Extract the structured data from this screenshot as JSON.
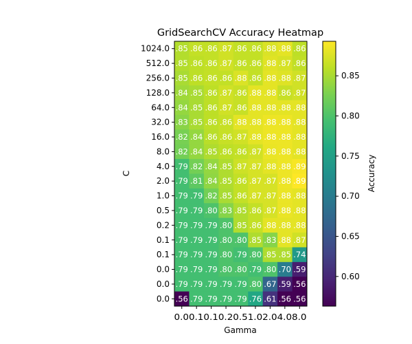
{
  "chart_data": {
    "type": "heatmap",
    "title": "GridSearchCV Accuracy Heatmap",
    "xlabel": "Gamma",
    "ylabel": "C",
    "colorbar_label": "Accuracy",
    "colormap": "viridis",
    "color_range": [
      0.563,
      0.893
    ],
    "colorbar_ticks": [
      "0.60",
      "0.65",
      "0.70",
      "0.75",
      "0.80",
      "0.85"
    ],
    "x_tick_labels": [
      "0.0",
      "0.1",
      "0.1",
      "0.2",
      "0.5",
      "1.0",
      "2.0",
      "4.0",
      "8.0"
    ],
    "x_tick_label_combined": "0.00.10.10.20.51.02.04.08.0",
    "x_values": [
      0.03125,
      0.0625,
      0.125,
      0.25,
      0.5,
      1.0,
      2.0,
      4.0,
      8.0
    ],
    "y_tick_labels": [
      "1024.0",
      "512.0",
      "256.0",
      "128.0",
      "64.0",
      "32.0",
      "16.0",
      "8.0",
      "4.0",
      "2.0",
      "1.0",
      "0.5",
      "0.2",
      "0.1",
      "0.1",
      "0.0",
      "0.0",
      "0.0"
    ],
    "cell_labels": [
      [
        ".85",
        ".86",
        ".86",
        ".87",
        ".86",
        ".86",
        ".88",
        ".88",
        ".86"
      ],
      [
        ".85",
        ".86",
        ".86",
        ".87",
        ".86",
        ".86",
        ".88",
        ".87",
        ".86"
      ],
      [
        ".85",
        ".86",
        ".86",
        ".86",
        ".88",
        ".86",
        ".88",
        ".88",
        ".87"
      ],
      [
        ".84",
        ".85",
        ".86",
        ".87",
        ".86",
        ".88",
        ".88",
        ".86",
        ".87"
      ],
      [
        ".84",
        ".85",
        ".86",
        ".87",
        ".86",
        ".88",
        ".88",
        ".88",
        ".88"
      ],
      [
        ".83",
        ".85",
        ".86",
        ".86",
        ".88",
        ".88",
        ".88",
        ".88",
        ".88"
      ],
      [
        ".82",
        ".84",
        ".86",
        ".86",
        ".87",
        ".88",
        ".88",
        ".88",
        ".88"
      ],
      [
        ".82",
        ".84",
        ".85",
        ".86",
        ".86",
        ".87",
        ".88",
        ".88",
        ".88"
      ],
      [
        ".79",
        ".82",
        ".84",
        ".85",
        ".87",
        ".87",
        ".88",
        ".88",
        ".89"
      ],
      [
        ".79",
        ".81",
        ".84",
        ".85",
        ".86",
        ".87",
        ".87",
        ".88",
        ".89"
      ],
      [
        ".79",
        ".79",
        ".82",
        ".85",
        ".86",
        ".87",
        ".87",
        ".88",
        ".88"
      ],
      [
        ".79",
        ".79",
        ".80",
        ".83",
        ".85",
        ".86",
        ".87",
        ".88",
        ".88"
      ],
      [
        ".79",
        ".79",
        ".79",
        ".80",
        ".85",
        ".86",
        ".88",
        ".88",
        ".88"
      ],
      [
        ".79",
        ".79",
        ".79",
        ".80",
        ".80",
        ".85",
        ".83",
        ".88",
        ".87"
      ],
      [
        ".79",
        ".79",
        ".79",
        ".80",
        ".79",
        ".80",
        ".85",
        ".85",
        ".74"
      ],
      [
        ".79",
        ".79",
        ".79",
        ".80",
        ".80",
        ".79",
        ".80",
        ".70",
        ".59"
      ],
      [
        ".79",
        ".79",
        ".79",
        ".79",
        ".79",
        ".80",
        ".67",
        ".59",
        ".56"
      ],
      [
        ".56",
        ".79",
        ".79",
        ".79",
        ".79",
        ".76",
        ".61",
        ".56",
        ".56"
      ]
    ],
    "values": [
      [
        0.855,
        0.863,
        0.863,
        0.87,
        0.863,
        0.863,
        0.875,
        0.88,
        0.86
      ],
      [
        0.855,
        0.86,
        0.863,
        0.87,
        0.863,
        0.863,
        0.878,
        0.873,
        0.862
      ],
      [
        0.85,
        0.86,
        0.863,
        0.863,
        0.875,
        0.863,
        0.88,
        0.877,
        0.87
      ],
      [
        0.845,
        0.85,
        0.86,
        0.87,
        0.865,
        0.88,
        0.88,
        0.865,
        0.87
      ],
      [
        0.84,
        0.85,
        0.86,
        0.87,
        0.865,
        0.88,
        0.88,
        0.88,
        0.88
      ],
      [
        0.835,
        0.85,
        0.86,
        0.865,
        0.88,
        0.88,
        0.885,
        0.885,
        0.88
      ],
      [
        0.825,
        0.84,
        0.858,
        0.865,
        0.87,
        0.88,
        0.885,
        0.885,
        0.88
      ],
      [
        0.823,
        0.84,
        0.853,
        0.86,
        0.863,
        0.87,
        0.883,
        0.885,
        0.88
      ],
      [
        0.793,
        0.823,
        0.84,
        0.853,
        0.868,
        0.873,
        0.88,
        0.885,
        0.89
      ],
      [
        0.793,
        0.81,
        0.838,
        0.853,
        0.863,
        0.873,
        0.873,
        0.885,
        0.893
      ],
      [
        0.793,
        0.793,
        0.823,
        0.85,
        0.863,
        0.873,
        0.873,
        0.883,
        0.88
      ],
      [
        0.793,
        0.793,
        0.8,
        0.833,
        0.853,
        0.863,
        0.873,
        0.883,
        0.88
      ],
      [
        0.793,
        0.793,
        0.793,
        0.8,
        0.853,
        0.863,
        0.88,
        0.88,
        0.88
      ],
      [
        0.793,
        0.793,
        0.793,
        0.8,
        0.8,
        0.853,
        0.833,
        0.88,
        0.87
      ],
      [
        0.793,
        0.793,
        0.793,
        0.8,
        0.793,
        0.8,
        0.853,
        0.853,
        0.74
      ],
      [
        0.793,
        0.793,
        0.793,
        0.8,
        0.8,
        0.793,
        0.8,
        0.7,
        0.59
      ],
      [
        0.793,
        0.793,
        0.793,
        0.793,
        0.793,
        0.8,
        0.67,
        0.59,
        0.563
      ],
      [
        0.563,
        0.793,
        0.793,
        0.793,
        0.793,
        0.76,
        0.61,
        0.563,
        0.563
      ]
    ]
  }
}
